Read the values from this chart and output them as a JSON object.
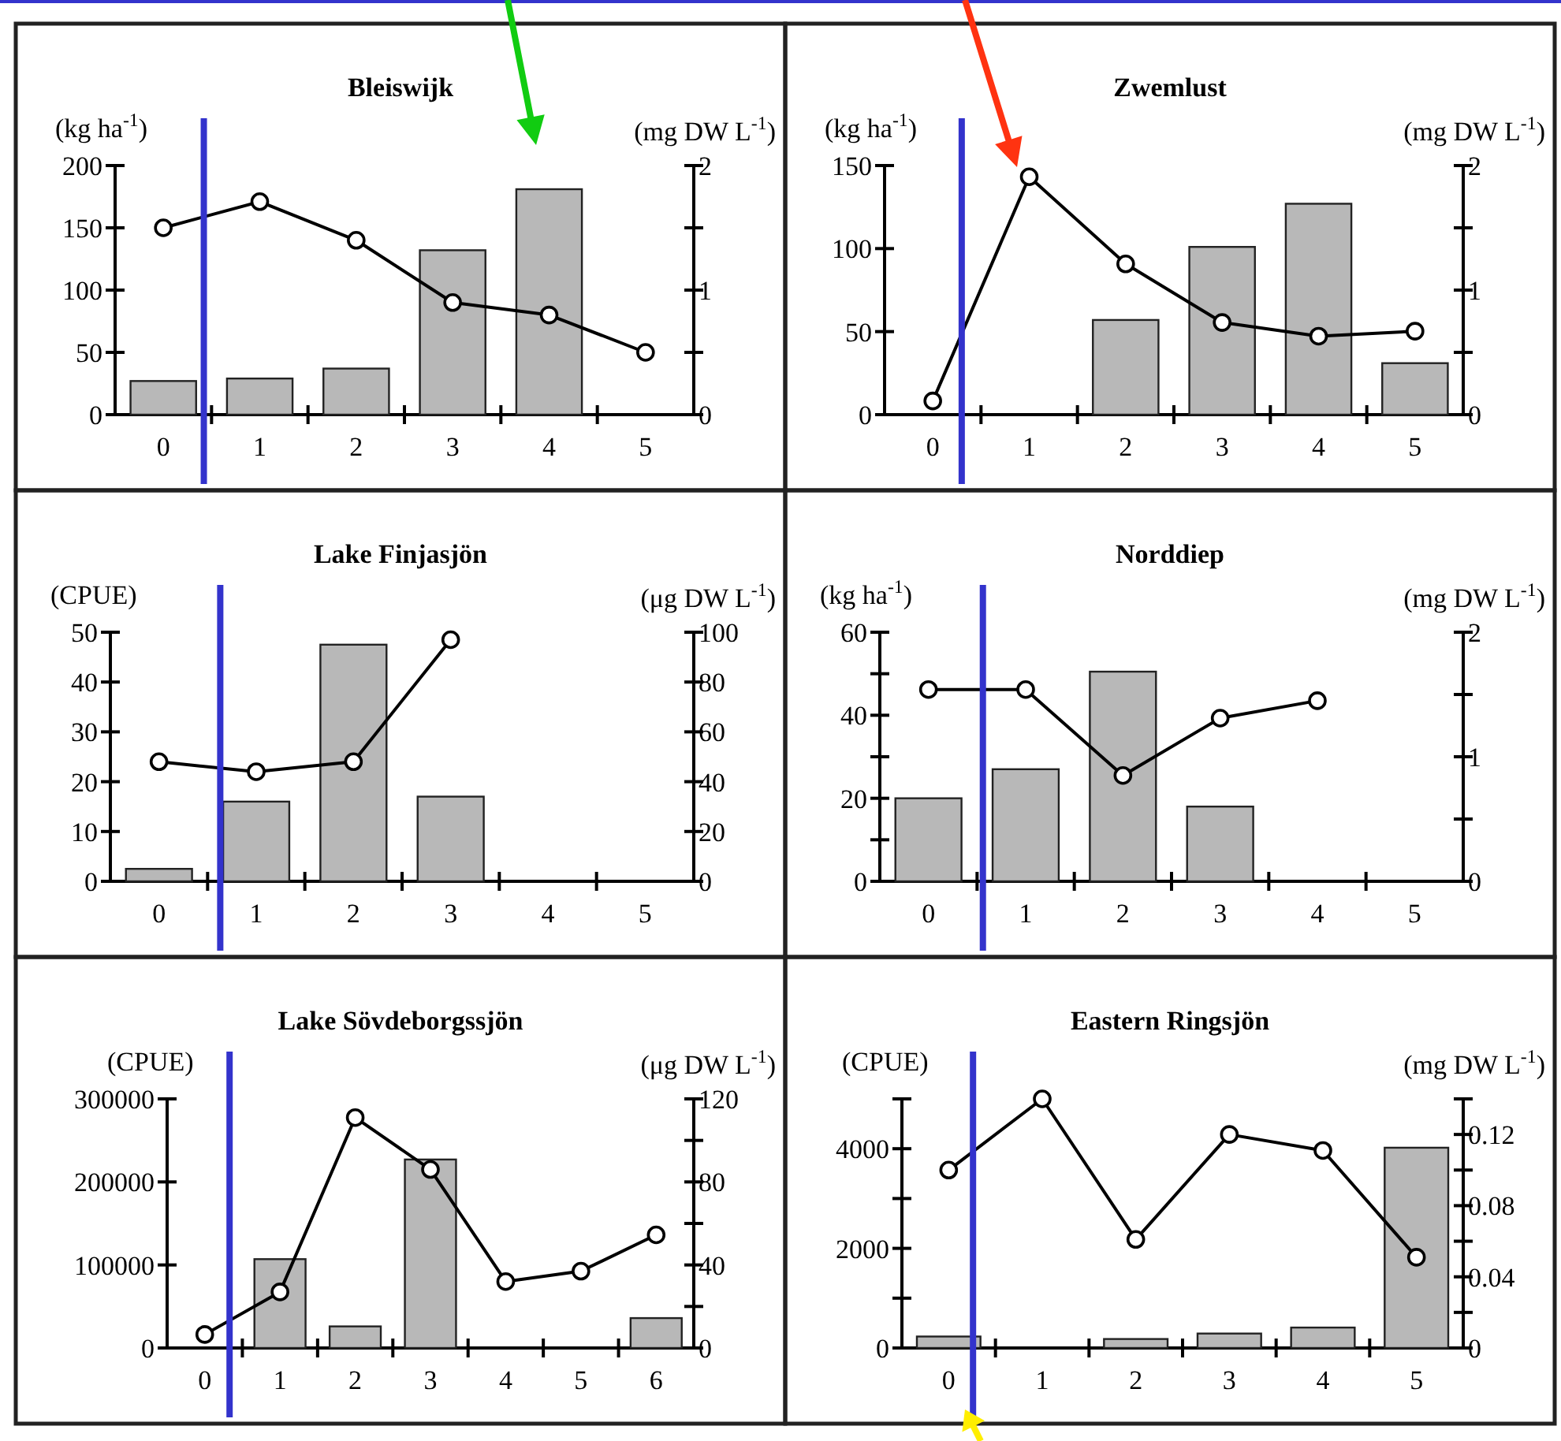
{
  "chart_data": [
    {
      "type": "bar",
      "title": "Bleiswijk",
      "ylabel": "(kg ha$^{-1}$)",
      "y2label": "(mg DW L$^{-1}$)",
      "x": [
        0,
        1,
        2,
        3,
        4,
        5
      ],
      "xlim": [
        -0.5,
        5.5
      ],
      "xticks": [
        0,
        {
          "value": 0.5,
          "label": null
        },
        1,
        {
          "value": 1.5,
          "label": null
        },
        2,
        {
          "value": 2.5,
          "label": null
        },
        3,
        {
          "value": 3.5,
          "label": null
        },
        4,
        {
          "value": 4.5,
          "label": null
        },
        5
      ],
      "marker": "circle",
      "ylim": [
        0,
        200
      ],
      "yticks": [
        0,
        50,
        100,
        150,
        200
      ],
      "y2lim": [
        0,
        2
      ],
      "y2ticks": [
        0,
        {
          "value": 0.5,
          "label": null
        },
        1,
        {
          "value": 1.5,
          "label": null
        },
        2
      ],
      "series": [
        {
          "color": "#b8b8b8",
          "values": [
            27,
            29,
            37,
            132,
            181,
            null
          ]
        },
        {
          "type": "line",
          "axis": "y2",
          "color": "#000000",
          "values": [
            1.5,
            1.71,
            1.4,
            0.9,
            0.8,
            0.5
          ]
        }
      ],
      "ref_lines": [
        {
          "axis": "x",
          "value": 0.42,
          "color": "#3333cc"
        }
      ]
    },
    {
      "type": "bar",
      "title": "Zwemlust",
      "ylabel": "(kg ha$^{-1}$)",
      "y2label": "(mg DW L$^{-1}$)",
      "x": [
        0,
        1,
        2,
        3,
        4,
        5
      ],
      "xlim": [
        -0.5,
        5.5
      ],
      "xticks": [
        0,
        {
          "value": 0.5,
          "label": null
        },
        1,
        {
          "value": 1.5,
          "label": null
        },
        2,
        {
          "value": 2.5,
          "label": null
        },
        3,
        {
          "value": 3.5,
          "label": null
        },
        4,
        {
          "value": 4.5,
          "label": null
        },
        5
      ],
      "marker": "circle",
      "ylim": [
        0,
        150
      ],
      "yticks": [
        0,
        50,
        100,
        150
      ],
      "y2lim": [
        0,
        2
      ],
      "y2ticks": [
        0,
        {
          "value": 0.5,
          "label": null
        },
        1,
        {
          "value": 1.5,
          "label": null
        },
        2
      ],
      "series": [
        {
          "color": "#b8b8b8",
          "values": [
            null,
            null,
            57,
            101,
            127,
            31
          ]
        },
        {
          "type": "line",
          "axis": "y2",
          "color": "#000000",
          "values": [
            0.11,
            1.91,
            1.21,
            0.74,
            0.63,
            0.67
          ]
        }
      ],
      "ref_lines": [
        {
          "axis": "x",
          "value": 0.3,
          "color": "#3333cc"
        }
      ]
    },
    {
      "type": "bar",
      "title": "Lake Finjasjön",
      "ylabel": "(CPUE)",
      "y2label": "(μg DW L$^{-1}$)",
      "x": [
        0,
        1,
        2,
        3
      ],
      "xlim": [
        -0.5,
        5.5
      ],
      "xticks": [
        0,
        {
          "value": 0.5,
          "label": null
        },
        1,
        {
          "value": 1.5,
          "label": null
        },
        2,
        {
          "value": 2.5,
          "label": null
        },
        3,
        {
          "value": 3.5,
          "label": null
        },
        4,
        {
          "value": 4.5,
          "label": null
        },
        5
      ],
      "marker": "circle",
      "ylim": [
        0,
        50
      ],
      "yticks": [
        0,
        10,
        20,
        30,
        40,
        50
      ],
      "y2lim": [
        0,
        100
      ],
      "y2ticks": [
        0,
        20,
        40,
        60,
        80,
        100
      ],
      "series": [
        {
          "color": "#b8b8b8",
          "values": [
            2.5,
            16,
            47.5,
            17
          ]
        },
        {
          "type": "line",
          "axis": "y2",
          "color": "#000000",
          "values": [
            48,
            44,
            48,
            97
          ]
        }
      ],
      "ref_lines": [
        {
          "axis": "x",
          "value": 0.63,
          "color": "#3333cc"
        }
      ]
    },
    {
      "type": "bar",
      "title": "Norddiep",
      "ylabel": "(kg ha$^{-1}$)",
      "y2label": "(mg DW L$^{-1}$)",
      "x": [
        0,
        1,
        2,
        3,
        4
      ],
      "xlim": [
        -0.5,
        5.5
      ],
      "xticks": [
        0,
        {
          "value": 0.5,
          "label": null
        },
        1,
        {
          "value": 1.5,
          "label": null
        },
        2,
        {
          "value": 2.5,
          "label": null
        },
        3,
        {
          "value": 3.5,
          "label": null
        },
        4,
        {
          "value": 4.5,
          "label": null
        },
        5
      ],
      "marker": "circle",
      "ylim": [
        0,
        60
      ],
      "yticks": [
        0,
        {
          "value": 10,
          "label": null
        },
        20,
        {
          "value": 30,
          "label": null
        },
        40,
        {
          "value": 50,
          "label": null
        },
        60
      ],
      "y2lim": [
        0,
        2
      ],
      "y2ticks": [
        0,
        {
          "value": 0.5,
          "label": null
        },
        1,
        {
          "value": 1.5,
          "label": null
        },
        2
      ],
      "series": [
        {
          "color": "#b8b8b8",
          "values": [
            20,
            27,
            50.5,
            18,
            null
          ]
        },
        {
          "type": "line",
          "axis": "y2",
          "color": "#000000",
          "values": [
            1.54,
            1.54,
            0.85,
            1.31,
            1.45
          ]
        }
      ],
      "ref_lines": [
        {
          "axis": "x",
          "value": 0.56,
          "color": "#3333cc"
        }
      ]
    },
    {
      "type": "bar",
      "title": "Lake Sövdeborgssjön",
      "ylabel": "(CPUE)",
      "y2label": "(μg DW L$^{-1}$)",
      "x": [
        0,
        1,
        2,
        3,
        4,
        5,
        6
      ],
      "xlim": [
        -0.5,
        6.5
      ],
      "xticks": [
        0,
        {
          "value": 0.5,
          "label": null
        },
        1,
        {
          "value": 1.5,
          "label": null
        },
        2,
        {
          "value": 2.5,
          "label": null
        },
        3,
        {
          "value": 3.5,
          "label": null
        },
        4,
        {
          "value": 4.5,
          "label": null
        },
        5,
        {
          "value": 5.5,
          "label": null
        },
        6
      ],
      "marker": "circle",
      "ylim": [
        0,
        300000
      ],
      "yticks": [
        0,
        100000,
        200000,
        300000
      ],
      "y2lim": [
        0,
        120
      ],
      "y2ticks": [
        0,
        {
          "value": 20,
          "label": null
        },
        40,
        {
          "value": 60,
          "label": null
        },
        80,
        {
          "value": 100,
          "label": null
        },
        120
      ],
      "series": [
        {
          "color": "#b8b8b8",
          "values": [
            null,
            107000,
            26000,
            227000,
            null,
            null,
            36000
          ]
        },
        {
          "type": "line",
          "axis": "y2",
          "color": "#000000",
          "values": [
            6.5,
            27,
            111,
            86,
            32,
            37,
            54.5
          ]
        }
      ],
      "ref_lines": [
        {
          "axis": "x",
          "value": 0.33,
          "color": "#3333cc"
        }
      ]
    },
    {
      "type": "bar",
      "title": "Eastern Ringsjön",
      "ylabel": "(CPUE)",
      "y2label": "(mg DW L$^{-1}$)",
      "x": [
        0,
        1,
        2,
        3,
        4,
        5
      ],
      "xlim": [
        -0.5,
        5.5
      ],
      "xticks": [
        0,
        {
          "value": 0.5,
          "label": null
        },
        1,
        {
          "value": 1.5,
          "label": null
        },
        2,
        {
          "value": 2.5,
          "label": null
        },
        3,
        {
          "value": 3.5,
          "label": null
        },
        4,
        {
          "value": 4.5,
          "label": null
        },
        5
      ],
      "marker": "circle",
      "ylim": [
        0,
        5000
      ],
      "yticks": [
        0,
        {
          "value": 1000,
          "label": null
        },
        2000,
        {
          "value": 3000,
          "label": null
        },
        4000,
        {
          "value": 5000,
          "label": null
        }
      ],
      "y2lim": [
        0,
        0.14
      ],
      "y2ticks": [
        0,
        {
          "value": 0.02,
          "label": null
        },
        0.04,
        {
          "value": 0.06,
          "label": null
        },
        0.08,
        {
          "value": 0.1,
          "label": null
        },
        0.12,
        {
          "value": 0.14,
          "label": null
        }
      ],
      "series": [
        {
          "color": "#b8b8b8",
          "values": [
            230,
            null,
            180,
            290,
            410,
            4020
          ]
        },
        {
          "type": "line",
          "axis": "y2",
          "color": "#000000",
          "values": [
            0.1,
            0.14,
            0.061,
            0.12,
            0.111,
            0.051
          ]
        }
      ],
      "ref_lines": [
        {
          "axis": "x",
          "value": 0.26,
          "color": "#3333cc"
        }
      ]
    }
  ]
}
